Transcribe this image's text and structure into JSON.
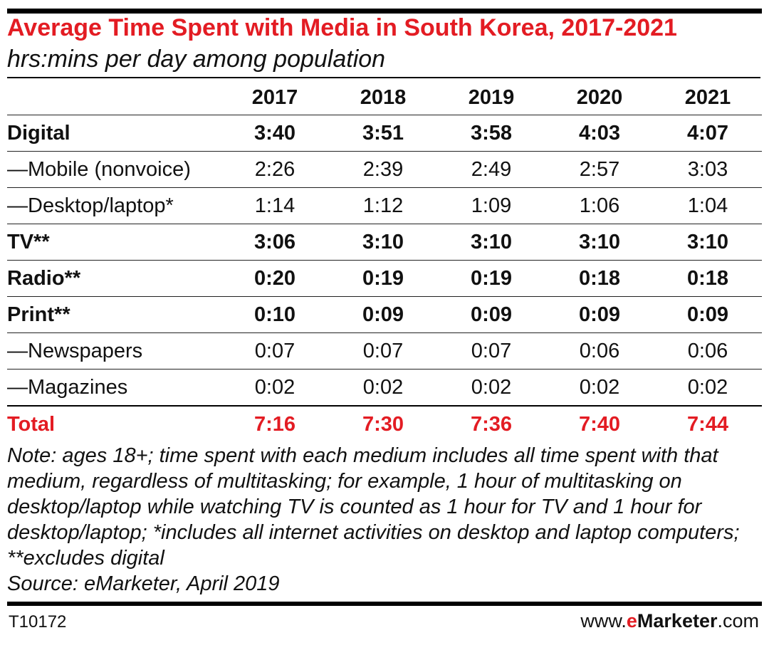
{
  "chart_data": {
    "type": "table",
    "title": "Average Time Spent with Media in South Korea, 2017-2021",
    "subtitle": "hrs:mins per day among population",
    "columns": [
      "2017",
      "2018",
      "2019",
      "2020",
      "2021"
    ],
    "rows": [
      {
        "label": "Digital",
        "style": "bold",
        "values": [
          "3:40",
          "3:51",
          "3:58",
          "4:03",
          "4:07"
        ]
      },
      {
        "label": "—Mobile (nonvoice)",
        "style": "sub",
        "values": [
          "2:26",
          "2:39",
          "2:49",
          "2:57",
          "3:03"
        ]
      },
      {
        "label": "—Desktop/laptop*",
        "style": "sub",
        "values": [
          "1:14",
          "1:12",
          "1:09",
          "1:06",
          "1:04"
        ]
      },
      {
        "label": "TV**",
        "style": "bold",
        "values": [
          "3:06",
          "3:10",
          "3:10",
          "3:10",
          "3:10"
        ]
      },
      {
        "label": "Radio**",
        "style": "bold",
        "values": [
          "0:20",
          "0:19",
          "0:19",
          "0:18",
          "0:18"
        ]
      },
      {
        "label": "Print**",
        "style": "bold",
        "values": [
          "0:10",
          "0:09",
          "0:09",
          "0:09",
          "0:09"
        ]
      },
      {
        "label": "—Newspapers",
        "style": "sub",
        "values": [
          "0:07",
          "0:07",
          "0:07",
          "0:06",
          "0:06"
        ]
      },
      {
        "label": "—Magazines",
        "style": "sub",
        "values": [
          "0:02",
          "0:02",
          "0:02",
          "0:02",
          "0:02"
        ]
      }
    ],
    "total": {
      "label": "Total",
      "values": [
        "7:16",
        "7:30",
        "7:36",
        "7:40",
        "7:44"
      ]
    },
    "note": "Note: ages 18+; time spent with each medium includes all time spent with that medium, regardless of multitasking; for example, 1 hour of multitasking on desktop/laptop while watching TV is counted as 1 hour for TV and 1 hour for desktop/laptop; *includes all internet activities on desktop and laptop computers; **excludes digital",
    "source": "Source: eMarketer, April 2019"
  },
  "footer": {
    "table_id": "T10172",
    "site_prefix": "www.",
    "site_e": "e",
    "site_name": "Marketer",
    "site_suffix": ".com"
  },
  "colors": {
    "accent_red": "#e31c23",
    "text": "#111111",
    "rule": "#000000"
  }
}
